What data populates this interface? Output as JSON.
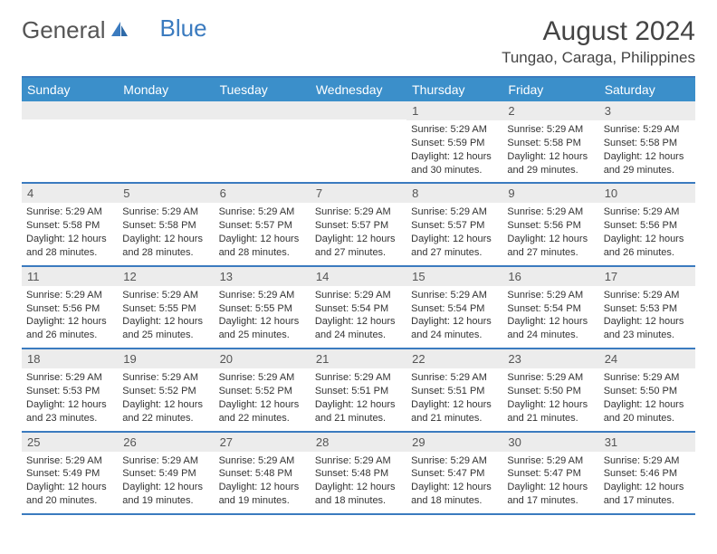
{
  "brand": {
    "general": "General",
    "blue": "Blue"
  },
  "header": {
    "month": "August 2024",
    "location": "Tungao, Caraga, Philippines"
  },
  "colors": {
    "accent": "#3b7bbf",
    "header_bg": "#3b8fca",
    "daynum_bg": "#ececec"
  },
  "day_labels": [
    "Sunday",
    "Monday",
    "Tuesday",
    "Wednesday",
    "Thursday",
    "Friday",
    "Saturday"
  ],
  "weeks": [
    [
      {
        "num": "",
        "sunrise": "",
        "sunset": "",
        "daylight": ""
      },
      {
        "num": "",
        "sunrise": "",
        "sunset": "",
        "daylight": ""
      },
      {
        "num": "",
        "sunrise": "",
        "sunset": "",
        "daylight": ""
      },
      {
        "num": "",
        "sunrise": "",
        "sunset": "",
        "daylight": ""
      },
      {
        "num": "1",
        "sunrise": "Sunrise: 5:29 AM",
        "sunset": "Sunset: 5:59 PM",
        "daylight": "Daylight: 12 hours and 30 minutes."
      },
      {
        "num": "2",
        "sunrise": "Sunrise: 5:29 AM",
        "sunset": "Sunset: 5:58 PM",
        "daylight": "Daylight: 12 hours and 29 minutes."
      },
      {
        "num": "3",
        "sunrise": "Sunrise: 5:29 AM",
        "sunset": "Sunset: 5:58 PM",
        "daylight": "Daylight: 12 hours and 29 minutes."
      }
    ],
    [
      {
        "num": "4",
        "sunrise": "Sunrise: 5:29 AM",
        "sunset": "Sunset: 5:58 PM",
        "daylight": "Daylight: 12 hours and 28 minutes."
      },
      {
        "num": "5",
        "sunrise": "Sunrise: 5:29 AM",
        "sunset": "Sunset: 5:58 PM",
        "daylight": "Daylight: 12 hours and 28 minutes."
      },
      {
        "num": "6",
        "sunrise": "Sunrise: 5:29 AM",
        "sunset": "Sunset: 5:57 PM",
        "daylight": "Daylight: 12 hours and 28 minutes."
      },
      {
        "num": "7",
        "sunrise": "Sunrise: 5:29 AM",
        "sunset": "Sunset: 5:57 PM",
        "daylight": "Daylight: 12 hours and 27 minutes."
      },
      {
        "num": "8",
        "sunrise": "Sunrise: 5:29 AM",
        "sunset": "Sunset: 5:57 PM",
        "daylight": "Daylight: 12 hours and 27 minutes."
      },
      {
        "num": "9",
        "sunrise": "Sunrise: 5:29 AM",
        "sunset": "Sunset: 5:56 PM",
        "daylight": "Daylight: 12 hours and 27 minutes."
      },
      {
        "num": "10",
        "sunrise": "Sunrise: 5:29 AM",
        "sunset": "Sunset: 5:56 PM",
        "daylight": "Daylight: 12 hours and 26 minutes."
      }
    ],
    [
      {
        "num": "11",
        "sunrise": "Sunrise: 5:29 AM",
        "sunset": "Sunset: 5:56 PM",
        "daylight": "Daylight: 12 hours and 26 minutes."
      },
      {
        "num": "12",
        "sunrise": "Sunrise: 5:29 AM",
        "sunset": "Sunset: 5:55 PM",
        "daylight": "Daylight: 12 hours and 25 minutes."
      },
      {
        "num": "13",
        "sunrise": "Sunrise: 5:29 AM",
        "sunset": "Sunset: 5:55 PM",
        "daylight": "Daylight: 12 hours and 25 minutes."
      },
      {
        "num": "14",
        "sunrise": "Sunrise: 5:29 AM",
        "sunset": "Sunset: 5:54 PM",
        "daylight": "Daylight: 12 hours and 24 minutes."
      },
      {
        "num": "15",
        "sunrise": "Sunrise: 5:29 AM",
        "sunset": "Sunset: 5:54 PM",
        "daylight": "Daylight: 12 hours and 24 minutes."
      },
      {
        "num": "16",
        "sunrise": "Sunrise: 5:29 AM",
        "sunset": "Sunset: 5:54 PM",
        "daylight": "Daylight: 12 hours and 24 minutes."
      },
      {
        "num": "17",
        "sunrise": "Sunrise: 5:29 AM",
        "sunset": "Sunset: 5:53 PM",
        "daylight": "Daylight: 12 hours and 23 minutes."
      }
    ],
    [
      {
        "num": "18",
        "sunrise": "Sunrise: 5:29 AM",
        "sunset": "Sunset: 5:53 PM",
        "daylight": "Daylight: 12 hours and 23 minutes."
      },
      {
        "num": "19",
        "sunrise": "Sunrise: 5:29 AM",
        "sunset": "Sunset: 5:52 PM",
        "daylight": "Daylight: 12 hours and 22 minutes."
      },
      {
        "num": "20",
        "sunrise": "Sunrise: 5:29 AM",
        "sunset": "Sunset: 5:52 PM",
        "daylight": "Daylight: 12 hours and 22 minutes."
      },
      {
        "num": "21",
        "sunrise": "Sunrise: 5:29 AM",
        "sunset": "Sunset: 5:51 PM",
        "daylight": "Daylight: 12 hours and 21 minutes."
      },
      {
        "num": "22",
        "sunrise": "Sunrise: 5:29 AM",
        "sunset": "Sunset: 5:51 PM",
        "daylight": "Daylight: 12 hours and 21 minutes."
      },
      {
        "num": "23",
        "sunrise": "Sunrise: 5:29 AM",
        "sunset": "Sunset: 5:50 PM",
        "daylight": "Daylight: 12 hours and 21 minutes."
      },
      {
        "num": "24",
        "sunrise": "Sunrise: 5:29 AM",
        "sunset": "Sunset: 5:50 PM",
        "daylight": "Daylight: 12 hours and 20 minutes."
      }
    ],
    [
      {
        "num": "25",
        "sunrise": "Sunrise: 5:29 AM",
        "sunset": "Sunset: 5:49 PM",
        "daylight": "Daylight: 12 hours and 20 minutes."
      },
      {
        "num": "26",
        "sunrise": "Sunrise: 5:29 AM",
        "sunset": "Sunset: 5:49 PM",
        "daylight": "Daylight: 12 hours and 19 minutes."
      },
      {
        "num": "27",
        "sunrise": "Sunrise: 5:29 AM",
        "sunset": "Sunset: 5:48 PM",
        "daylight": "Daylight: 12 hours and 19 minutes."
      },
      {
        "num": "28",
        "sunrise": "Sunrise: 5:29 AM",
        "sunset": "Sunset: 5:48 PM",
        "daylight": "Daylight: 12 hours and 18 minutes."
      },
      {
        "num": "29",
        "sunrise": "Sunrise: 5:29 AM",
        "sunset": "Sunset: 5:47 PM",
        "daylight": "Daylight: 12 hours and 18 minutes."
      },
      {
        "num": "30",
        "sunrise": "Sunrise: 5:29 AM",
        "sunset": "Sunset: 5:47 PM",
        "daylight": "Daylight: 12 hours and 17 minutes."
      },
      {
        "num": "31",
        "sunrise": "Sunrise: 5:29 AM",
        "sunset": "Sunset: 5:46 PM",
        "daylight": "Daylight: 12 hours and 17 minutes."
      }
    ]
  ]
}
